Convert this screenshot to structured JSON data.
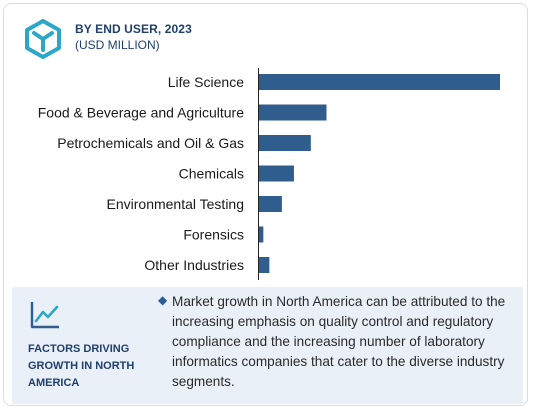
{
  "header": {
    "title": "BY END USER, 2023",
    "subtitle": "(USD MILLION)",
    "icon": "hexagon-cube-icon"
  },
  "colors": {
    "bar": "#2f5d8e",
    "accent": "#2aa7c9",
    "panel_bg": "#eaf0f7"
  },
  "chart_data": {
    "type": "bar",
    "orientation": "horizontal",
    "title": "BY END USER, 2023",
    "subtitle": "(USD MILLION)",
    "categories": [
      "Life Science",
      "Food & Beverage and Agriculture",
      "Petrochemicals and Oil & Gas",
      "Chemicals",
      "Environmental Testing",
      "Forensics",
      "Other Industries"
    ],
    "values": [
      100,
      28,
      21.5,
      14.5,
      9.5,
      1.8,
      4.3
    ],
    "xlim": [
      0,
      100
    ],
    "grid": false,
    "legend": "none"
  },
  "footer": {
    "icon": "trend-line-icon",
    "factors_label": "FACTORS DRIVING GROWTH IN NORTH AMERICA",
    "bullet": "◆",
    "description": "Market growth in North America can be attributed to the increasing emphasis on quality control and regulatory compliance and the increasing number of laboratory informatics companies that cater to the diverse industry segments."
  }
}
